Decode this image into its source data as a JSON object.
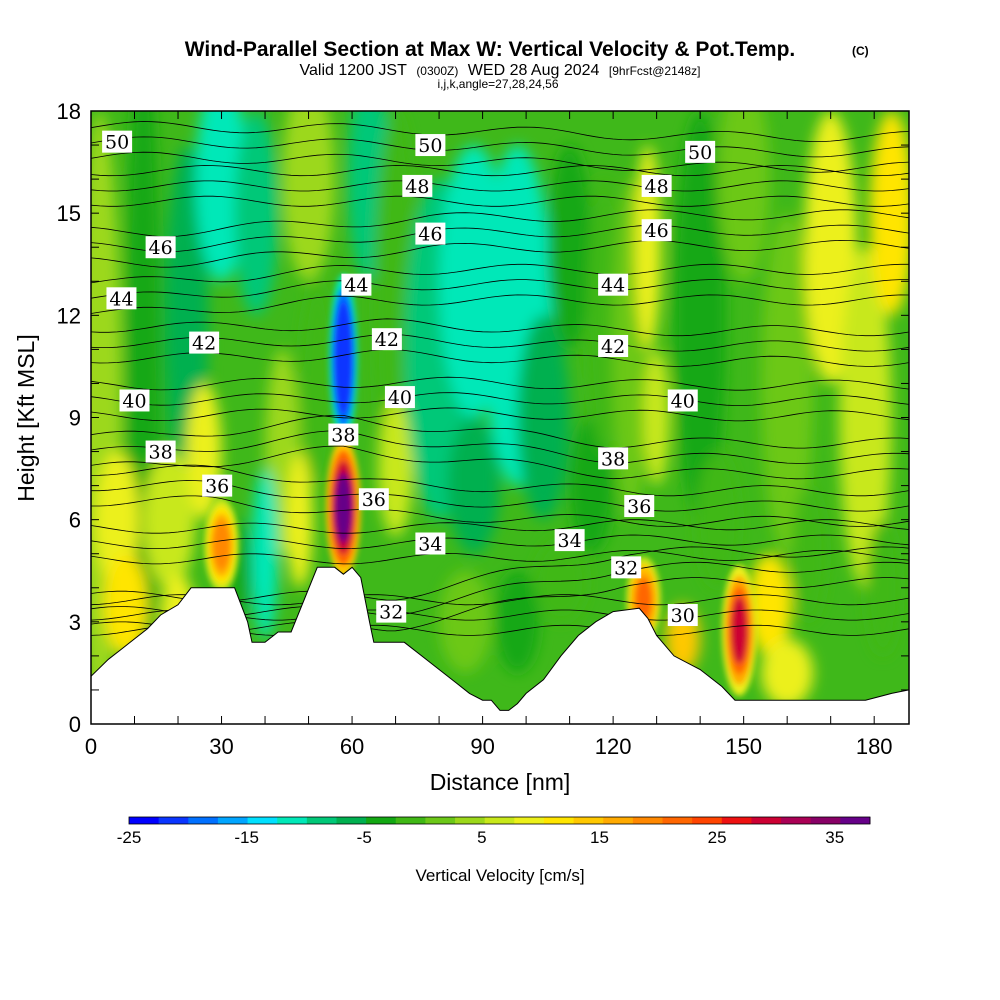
{
  "chart_data": {
    "type": "heatmap",
    "title": "Wind-Parallel Section at Max W: Vertical Velocity & Pot.Temp.",
    "title_mark": "(C)",
    "subtitle": {
      "valid": "Valid 1200 JST",
      "utc": "(0300Z)",
      "date": "WED 28 Aug 2024",
      "forecast": "[9hrFcst@2148z]"
    },
    "subtitle2": "i,j,k,angle=27,28,24,56",
    "xlabel": "Distance [nm]",
    "ylabel": "Height [Kft MSL]",
    "xlim": [
      0,
      188
    ],
    "ylim": [
      0,
      18
    ],
    "xticks": [
      "0",
      "30",
      "60",
      "90",
      "120",
      "150",
      "180"
    ],
    "yticks": [
      "0",
      "3",
      "6",
      "9",
      "12",
      "15",
      "18"
    ],
    "colorbar": {
      "label": "Vertical Velocity [cm/s]",
      "range": [
        -25,
        38
      ],
      "ticks": [
        "-25",
        "-15",
        "-5",
        "5",
        "15",
        "25",
        "35"
      ],
      "colors": [
        "#0000ff",
        "#0a35ff",
        "#0070ff",
        "#00a5ff",
        "#00e0ff",
        "#00e8b8",
        "#00c878",
        "#00b050",
        "#13a813",
        "#40b815",
        "#6cc818",
        "#9cd81a",
        "#c8e81a",
        "#ecf01a",
        "#ffe500",
        "#ffc800",
        "#ffaa00",
        "#ff8800",
        "#ff6600",
        "#ff4400",
        "#ee1111",
        "#cc0033",
        "#aa0055",
        "#880066",
        "#660088"
      ]
    },
    "w_features": [
      {
        "x": 58,
        "z_range": [
          4.5,
          8.2
        ],
        "w": 38
      },
      {
        "x": 149,
        "z_range": [
          1.0,
          4.5
        ],
        "w": 28
      },
      {
        "x": 127,
        "z_range": [
          2.5,
          4.8
        ],
        "w": 22
      },
      {
        "x": 30,
        "z_range": [
          4.0,
          6.5
        ],
        "w": 20
      },
      {
        "x": 58,
        "z_range": [
          8.5,
          13.0
        ],
        "w": -22
      }
    ],
    "theta_contour_labels": [
      {
        "value": "30",
        "x": 136,
        "y": 3.2
      },
      {
        "value": "32",
        "x": 69,
        "y": 3.3
      },
      {
        "value": "32",
        "x": 123,
        "y": 4.6
      },
      {
        "value": "34",
        "x": 78,
        "y": 5.3
      },
      {
        "value": "34",
        "x": 110,
        "y": 5.4
      },
      {
        "value": "36",
        "x": 29,
        "y": 7.0
      },
      {
        "value": "36",
        "x": 65,
        "y": 6.6
      },
      {
        "value": "36",
        "x": 126,
        "y": 6.4
      },
      {
        "value": "38",
        "x": 16,
        "y": 8.0
      },
      {
        "value": "38",
        "x": 58,
        "y": 8.5
      },
      {
        "value": "38",
        "x": 120,
        "y": 7.8
      },
      {
        "value": "40",
        "x": 10,
        "y": 9.5
      },
      {
        "value": "40",
        "x": 71,
        "y": 9.6
      },
      {
        "value": "40",
        "x": 136,
        "y": 9.5
      },
      {
        "value": "42",
        "x": 26,
        "y": 11.2
      },
      {
        "value": "42",
        "x": 68,
        "y": 11.3
      },
      {
        "value": "42",
        "x": 120,
        "y": 11.1
      },
      {
        "value": "44",
        "x": 7,
        "y": 12.5
      },
      {
        "value": "44",
        "x": 61,
        "y": 12.9
      },
      {
        "value": "44",
        "x": 120,
        "y": 12.9
      },
      {
        "value": "46",
        "x": 16,
        "y": 14.0
      },
      {
        "value": "46",
        "x": 78,
        "y": 14.4
      },
      {
        "value": "46",
        "x": 130,
        "y": 14.5
      },
      {
        "value": "48",
        "x": 75,
        "y": 15.8
      },
      {
        "value": "48",
        "x": 130,
        "y": 15.8
      },
      {
        "value": "50",
        "x": 6,
        "y": 17.1
      },
      {
        "value": "50",
        "x": 78,
        "y": 17.0
      },
      {
        "value": "50",
        "x": 140,
        "y": 16.8
      }
    ],
    "terrain": [
      [
        0,
        1.4
      ],
      [
        4,
        1.9
      ],
      [
        7,
        2.2
      ],
      [
        10,
        2.5
      ],
      [
        13,
        2.8
      ],
      [
        16,
        3.2
      ],
      [
        20,
        3.5
      ],
      [
        23,
        4.0
      ],
      [
        28,
        4.0
      ],
      [
        33,
        4.0
      ],
      [
        36,
        3.0
      ],
      [
        37,
        2.4
      ],
      [
        40,
        2.4
      ],
      [
        43,
        2.7
      ],
      [
        46,
        2.7
      ],
      [
        52,
        4.6
      ],
      [
        56,
        4.6
      ],
      [
        58,
        4.4
      ],
      [
        60,
        4.6
      ],
      [
        62,
        4.3
      ],
      [
        64,
        3.0
      ],
      [
        65,
        2.4
      ],
      [
        68,
        2.4
      ],
      [
        72,
        2.4
      ],
      [
        76,
        2.0
      ],
      [
        80,
        1.6
      ],
      [
        84,
        1.2
      ],
      [
        87,
        0.9
      ],
      [
        90,
        0.7
      ],
      [
        92,
        0.7
      ],
      [
        94,
        0.4
      ],
      [
        96,
        0.4
      ],
      [
        98,
        0.6
      ],
      [
        100,
        0.9
      ],
      [
        104,
        1.3
      ],
      [
        108,
        2.0
      ],
      [
        112,
        2.6
      ],
      [
        116,
        3.0
      ],
      [
        120,
        3.3
      ],
      [
        126,
        3.4
      ],
      [
        128,
        3.1
      ],
      [
        130,
        2.6
      ],
      [
        134,
        2.0
      ],
      [
        140,
        1.6
      ],
      [
        145,
        1.1
      ],
      [
        148,
        0.7
      ],
      [
        154,
        0.7
      ],
      [
        160,
        0.7
      ],
      [
        166,
        0.7
      ],
      [
        172,
        0.7
      ],
      [
        178,
        0.7
      ],
      [
        184,
        0.9
      ],
      [
        188,
        1.0
      ]
    ]
  }
}
